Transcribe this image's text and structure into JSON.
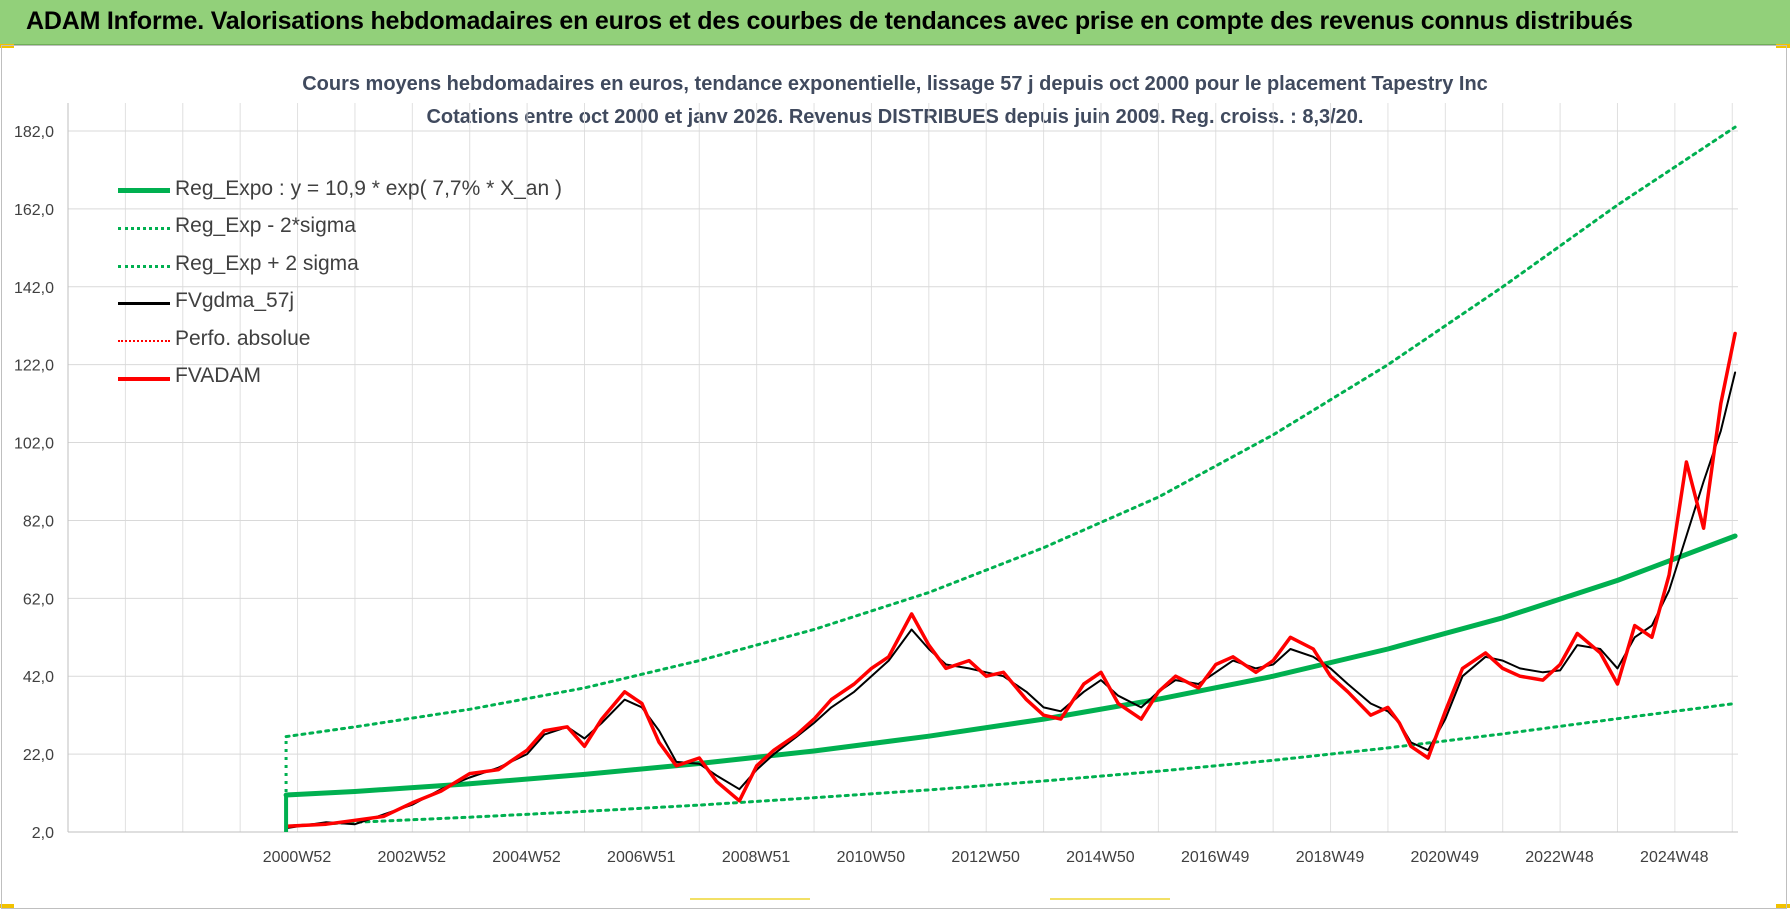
{
  "header": {
    "banner_title": "ADAM Informe. Valorisations hebdomadaires en euros et des courbes de tendances avec prise en compte des revenus connus distribués"
  },
  "colors": {
    "banner_bg": "#92d07a",
    "reg_expo": "#00b050",
    "fvgdma": "#000000",
    "fvadam": "#ff0000",
    "grid": "#d9d9d9",
    "title_text": "#404a5e"
  },
  "chart_data": {
    "type": "line",
    "title": "Cours moyens hebdomadaires en euros, tendance exponentielle, lissage 57 j depuis oct 2000 pour le placement Tapestry Inc",
    "subtitle": "Cotations entre oct 2000 et janv 2026. Revenus DISTRIBUES depuis juin 2009. Reg. croiss. : 8,3/20.",
    "xlabel": "",
    "ylabel": "",
    "ylim": [
      2,
      182
    ],
    "yticks": [
      "2,0",
      "22,0",
      "42,0",
      "62,0",
      "82,0",
      "102,0",
      "122,0",
      "142,0",
      "162,0",
      "182,0"
    ],
    "xticks": [
      "2000W52",
      "2002W52",
      "2004W52",
      "2006W51",
      "2008W51",
      "2010W50",
      "2012W50",
      "2014W50",
      "2016W49",
      "2018W49",
      "2020W49",
      "2022W48",
      "2024W48"
    ],
    "xlim": [
      1997.0,
      2026.1
    ],
    "grid": true,
    "legend_position": "top-left",
    "series": [
      {
        "name": "Reg_Expo : y = 10,9 * exp( 7,7% *  X_an )",
        "style": "solid-thick",
        "color": "#00b050",
        "x": [
          2000.8,
          2002,
          2004,
          2006,
          2008,
          2010,
          2012,
          2014,
          2016,
          2018,
          2020,
          2022,
          2024,
          2026.05
        ],
        "y": [
          11.5,
          12.4,
          14.4,
          16.8,
          19.6,
          22.8,
          26.6,
          31,
          36.1,
          42,
          49,
          57,
          66.6,
          78
        ]
      },
      {
        "name": "Reg_Exp - 2*sigma",
        "style": "dotted",
        "color": "#00b050",
        "x": [
          2000.8,
          2002,
          2004,
          2006,
          2008,
          2010,
          2012,
          2014,
          2016,
          2018,
          2020,
          2022,
          2024,
          2026.05
        ],
        "y": [
          3.5,
          4.5,
          5.8,
          7.3,
          8.9,
          10.8,
          12.8,
          15.1,
          17.6,
          20.4,
          23.6,
          27.2,
          31.1,
          35
        ]
      },
      {
        "name": "Reg_Exp + 2 sigma",
        "style": "dotted",
        "color": "#00b050",
        "x": [
          2000.8,
          2002,
          2004,
          2006,
          2008,
          2010,
          2012,
          2014,
          2016,
          2018,
          2020,
          2022,
          2024,
          2026.05
        ],
        "y": [
          26.5,
          29,
          33.5,
          39,
          46,
          54,
          63.5,
          75,
          88,
          104,
          122,
          142,
          163,
          183
        ]
      },
      {
        "name": "FVgdma_57j",
        "style": "solid",
        "color": "#000000",
        "x": [
          2000.8,
          2001.5,
          2002,
          2002.5,
          2003,
          2003.5,
          2004,
          2004.5,
          2005,
          2005.3,
          2005.7,
          2006,
          2006.3,
          2006.7,
          2007,
          2007.3,
          2007.6,
          2008,
          2008.3,
          2008.7,
          2009,
          2009.3,
          2009.7,
          2010,
          2010.3,
          2010.7,
          2011,
          2011.3,
          2011.7,
          2012,
          2012.3,
          2012.7,
          2013,
          2013.3,
          2013.7,
          2014,
          2014.3,
          2014.7,
          2015,
          2015.3,
          2015.7,
          2016,
          2016.3,
          2016.7,
          2017,
          2017.3,
          2017.7,
          2018,
          2018.3,
          2018.7,
          2019,
          2019.3,
          2019.7,
          2020,
          2020.2,
          2020.4,
          2020.7,
          2021,
          2021.3,
          2021.7,
          2022,
          2022.3,
          2022.7,
          2023,
          2023.3,
          2023.7,
          2024,
          2024.3,
          2024.6,
          2024.9,
          2025.2,
          2025.5,
          2025.8,
          2026.05
        ],
        "y": [
          3,
          4.5,
          4,
          6.5,
          9,
          13,
          16,
          18.5,
          22,
          27,
          29,
          26,
          30,
          36,
          34,
          28,
          20,
          19.5,
          16.5,
          13,
          18,
          22,
          26.5,
          30,
          34,
          38,
          42,
          46,
          54,
          49,
          45,
          44,
          43,
          42,
          38,
          34,
          33,
          38,
          41,
          37,
          34,
          38,
          41,
          40,
          43,
          46,
          44,
          45,
          49,
          47,
          44,
          40,
          35,
          33,
          30,
          25,
          23,
          31,
          42,
          47,
          46,
          44,
          43,
          43.5,
          50,
          49,
          44,
          52,
          55,
          64,
          78,
          92,
          105,
          120
        ]
      },
      {
        "name": "Perfo. absolue",
        "style": "dotted",
        "color": "#ff0000",
        "x": [],
        "y": []
      },
      {
        "name": "FVADAM",
        "style": "solid-thick",
        "color": "#ff0000",
        "x": [
          2000.8,
          2001.5,
          2002,
          2002.5,
          2003,
          2003.5,
          2004,
          2004.5,
          2005,
          2005.3,
          2005.7,
          2006,
          2006.3,
          2006.7,
          2007,
          2007.3,
          2007.6,
          2008,
          2008.3,
          2008.7,
          2009,
          2009.3,
          2009.7,
          2010,
          2010.3,
          2010.7,
          2011,
          2011.3,
          2011.7,
          2012,
          2012.3,
          2012.7,
          2013,
          2013.3,
          2013.7,
          2014,
          2014.3,
          2014.7,
          2015,
          2015.3,
          2015.7,
          2016,
          2016.3,
          2016.7,
          2017,
          2017.3,
          2017.7,
          2018,
          2018.3,
          2018.7,
          2019,
          2019.3,
          2019.7,
          2020,
          2020.2,
          2020.4,
          2020.7,
          2021,
          2021.3,
          2021.7,
          2022,
          2022.3,
          2022.7,
          2023,
          2023.3,
          2023.7,
          2024,
          2024.3,
          2024.6,
          2024.9,
          2025.2,
          2025.5,
          2025.8,
          2026.05
        ],
        "y": [
          3.5,
          4,
          5,
          6,
          9.5,
          12.5,
          17,
          18,
          23,
          28,
          29,
          24,
          31,
          38,
          35,
          25,
          19,
          21,
          15,
          10,
          19,
          23,
          27,
          31,
          36,
          40,
          44,
          47,
          58,
          50,
          44,
          46,
          42,
          43,
          36,
          32,
          31,
          40,
          43,
          35,
          31,
          38,
          42,
          39,
          45,
          47,
          43,
          46,
          52,
          49,
          42,
          38,
          32,
          34,
          30,
          24,
          21,
          33,
          44,
          48,
          44,
          42,
          41,
          45,
          53,
          48,
          40,
          55,
          52,
          68,
          97,
          80,
          112,
          130
        ]
      }
    ]
  }
}
